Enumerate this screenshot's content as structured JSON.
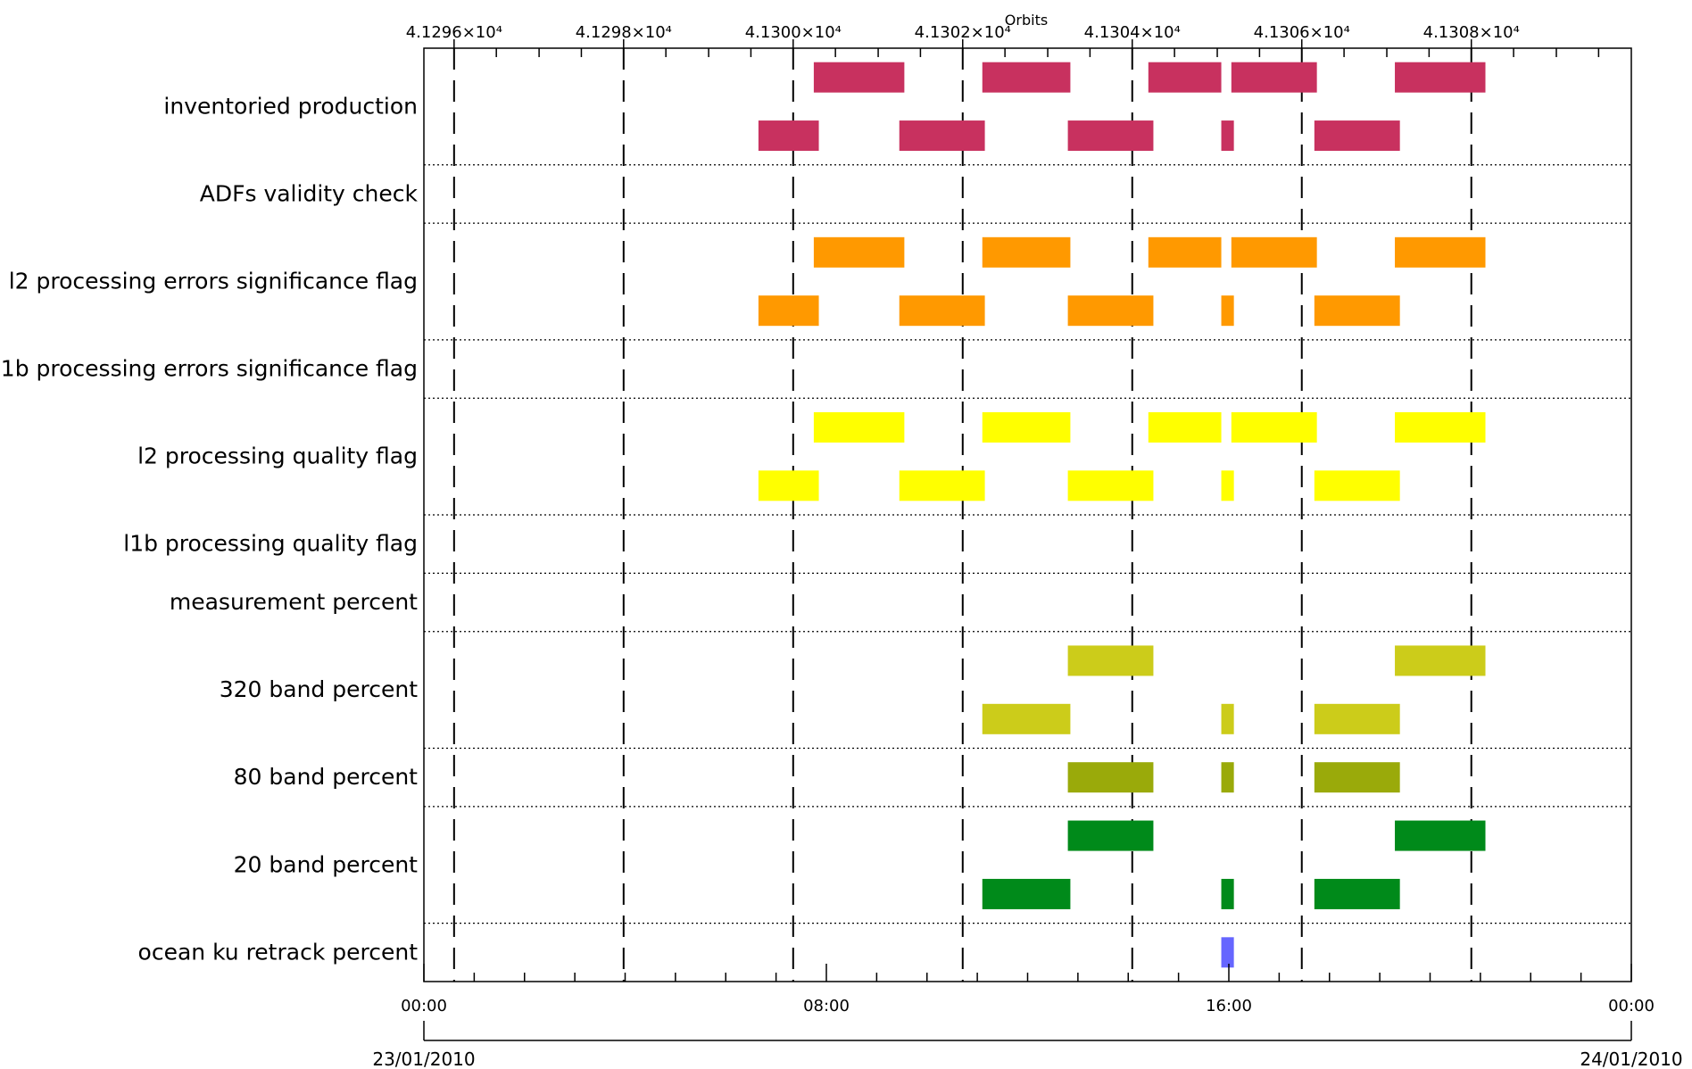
{
  "chart_data": {
    "type": "gantt",
    "title": "Orbits",
    "dates": {
      "start": "23/01/2010",
      "end": "24/01/2010"
    },
    "time_axis": {
      "range_hours": [
        0,
        24
      ],
      "ticks": [
        {
          "hour": 0,
          "label": "00:00"
        },
        {
          "hour": 8,
          "label": "08:00"
        },
        {
          "hour": 16,
          "label": "16:00"
        },
        {
          "hour": 24,
          "label": "00:00"
        }
      ],
      "minor_tick_hours": [
        1,
        2,
        3,
        4,
        5,
        6,
        7,
        9,
        10,
        11,
        12,
        13,
        14,
        15,
        17,
        18,
        19,
        20,
        21,
        22,
        23
      ]
    },
    "orbit_axis": {
      "orbit_line_hours": [
        0.6,
        3.97,
        7.34,
        10.71,
        14.08,
        17.45,
        20.82
      ],
      "labels": [
        "4.1296×10⁴",
        "4.1298×10⁴",
        "4.1300×10⁴",
        "4.1302×10⁴",
        "4.1304×10⁴",
        "4.1306×10⁴",
        "4.1308×10⁴"
      ],
      "minor_tick_hours": [
        1.44,
        2.29,
        3.13,
        4.81,
        5.66,
        6.5,
        8.18,
        9.03,
        9.87,
        11.55,
        12.4,
        13.24,
        14.92,
        15.77,
        16.61,
        18.29,
        19.14,
        19.98,
        21.66,
        22.51,
        23.35
      ]
    },
    "rows": [
      {
        "label": "inventoried production",
        "color": "#c8315f",
        "sublanes": 2,
        "bars": [
          {
            "lane": 0,
            "start": 7.75,
            "end": 9.55
          },
          {
            "lane": 0,
            "start": 11.1,
            "end": 12.85
          },
          {
            "lane": 0,
            "start": 14.4,
            "end": 15.85
          },
          {
            "lane": 0,
            "start": 16.05,
            "end": 17.75
          },
          {
            "lane": 0,
            "start": 19.3,
            "end": 21.1
          },
          {
            "lane": 1,
            "start": 6.65,
            "end": 7.85
          },
          {
            "lane": 1,
            "start": 9.45,
            "end": 11.15
          },
          {
            "lane": 1,
            "start": 12.8,
            "end": 14.5
          },
          {
            "lane": 1,
            "start": 15.85,
            "end": 16.1
          },
          {
            "lane": 1,
            "start": 17.7,
            "end": 19.4
          }
        ]
      },
      {
        "label": "ADFs validity check",
        "color": "#808080",
        "sublanes": 1,
        "bars": []
      },
      {
        "label": "l2 processing errors significance flag",
        "color": "#ff9900",
        "sublanes": 2,
        "bars": [
          {
            "lane": 0,
            "start": 7.75,
            "end": 9.55
          },
          {
            "lane": 0,
            "start": 11.1,
            "end": 12.85
          },
          {
            "lane": 0,
            "start": 14.4,
            "end": 15.85
          },
          {
            "lane": 0,
            "start": 16.05,
            "end": 17.75
          },
          {
            "lane": 0,
            "start": 19.3,
            "end": 21.1
          },
          {
            "lane": 1,
            "start": 6.65,
            "end": 7.85
          },
          {
            "lane": 1,
            "start": 9.45,
            "end": 11.15
          },
          {
            "lane": 1,
            "start": 12.8,
            "end": 14.5
          },
          {
            "lane": 1,
            "start": 15.85,
            "end": 16.1
          },
          {
            "lane": 1,
            "start": 17.7,
            "end": 19.4
          }
        ]
      },
      {
        "label": "l1b processing errors significance flag",
        "color": "#808080",
        "sublanes": 1,
        "bars": []
      },
      {
        "label": "l2 processing quality flag",
        "color": "#ffff00",
        "sublanes": 2,
        "bars": [
          {
            "lane": 0,
            "start": 7.75,
            "end": 9.55
          },
          {
            "lane": 0,
            "start": 11.1,
            "end": 12.85
          },
          {
            "lane": 0,
            "start": 14.4,
            "end": 15.85
          },
          {
            "lane": 0,
            "start": 16.05,
            "end": 17.75
          },
          {
            "lane": 0,
            "start": 19.3,
            "end": 21.1
          },
          {
            "lane": 1,
            "start": 6.65,
            "end": 7.85
          },
          {
            "lane": 1,
            "start": 9.45,
            "end": 11.15
          },
          {
            "lane": 1,
            "start": 12.8,
            "end": 14.5
          },
          {
            "lane": 1,
            "start": 15.85,
            "end": 16.1
          },
          {
            "lane": 1,
            "start": 17.7,
            "end": 19.4
          }
        ]
      },
      {
        "label": "l1b processing quality flag",
        "color": "#808080",
        "sublanes": 1,
        "bars": []
      },
      {
        "label": "measurement percent",
        "color": "#808080",
        "sublanes": 1,
        "bars": []
      },
      {
        "label": "320 band percent",
        "color": "#cccc1a",
        "sublanes": 2,
        "bars": [
          {
            "lane": 0,
            "start": 12.8,
            "end": 14.5
          },
          {
            "lane": 0,
            "start": 19.3,
            "end": 21.1
          },
          {
            "lane": 1,
            "start": 11.1,
            "end": 12.85
          },
          {
            "lane": 1,
            "start": 15.85,
            "end": 16.1
          },
          {
            "lane": 1,
            "start": 17.7,
            "end": 19.4
          }
        ]
      },
      {
        "label": "80 band percent",
        "color": "#9aaa0a",
        "sublanes": 1,
        "bars": [
          {
            "lane": 0,
            "start": 12.8,
            "end": 14.5
          },
          {
            "lane": 0,
            "start": 15.85,
            "end": 16.1
          },
          {
            "lane": 0,
            "start": 17.7,
            "end": 19.4
          }
        ]
      },
      {
        "label": "20 band percent",
        "color": "#008a1a",
        "sublanes": 2,
        "bars": [
          {
            "lane": 0,
            "start": 12.8,
            "end": 14.5
          },
          {
            "lane": 0,
            "start": 19.3,
            "end": 21.1
          },
          {
            "lane": 1,
            "start": 11.1,
            "end": 12.85
          },
          {
            "lane": 1,
            "start": 15.85,
            "end": 16.1
          },
          {
            "lane": 1,
            "start": 17.7,
            "end": 19.4
          }
        ]
      },
      {
        "label": "ocean ku retrack percent",
        "color": "#6666ff",
        "sublanes": 1,
        "bars": [
          {
            "lane": 0,
            "start": 15.85,
            "end": 16.1
          }
        ]
      }
    ]
  }
}
